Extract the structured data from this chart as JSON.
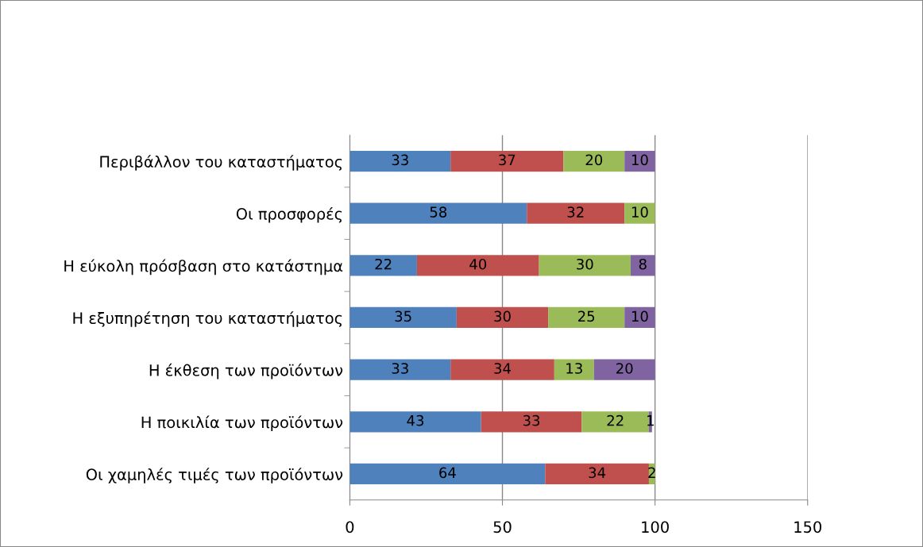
{
  "chart_data": {
    "type": "bar",
    "orientation": "horizontal",
    "stacked": true,
    "data_labels": true,
    "grid": "x",
    "categories": [
      "Περιβάλλον του καταστήματος",
      "Οι προσφορές",
      "Η εύκολη πρόσβαση στο κατάστημα",
      "Η εξυπηρέτηση του καταστήματος",
      "Η έκθεση των προϊόντων",
      "Η ποικιλία των προϊόντων",
      "Οι χαμηλές τιμές των προϊόντων"
    ],
    "series": [
      {
        "color": "#4f81bd",
        "values": [
          33,
          58,
          22,
          35,
          33,
          43,
          64
        ]
      },
      {
        "color": "#c0504d",
        "values": [
          37,
          32,
          40,
          30,
          34,
          33,
          34
        ]
      },
      {
        "color": "#9bbb59",
        "values": [
          20,
          10,
          30,
          25,
          13,
          22,
          2
        ]
      },
      {
        "color": "#8064a2",
        "values": [
          10,
          null,
          8,
          10,
          20,
          1,
          null
        ]
      }
    ],
    "xlim": [
      0,
      150
    ],
    "xticks": [
      0,
      50,
      100,
      150
    ]
  }
}
